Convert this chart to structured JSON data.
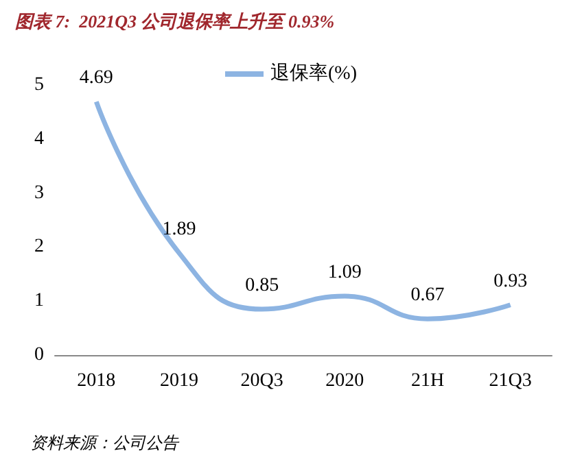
{
  "chart_data": {
    "type": "line",
    "title": "图表 7:  2021Q3 公司退保率上升至 0.93%",
    "categories": [
      "2018",
      "2019",
      "20Q3",
      "2020",
      "21H",
      "21Q3"
    ],
    "series": [
      {
        "name": "退保率(%)",
        "color": "#8db4e2",
        "values": [
          4.69,
          1.89,
          0.85,
          1.09,
          0.67,
          0.93
        ]
      }
    ],
    "ylim": [
      0,
      5
    ],
    "yticks": [
      0,
      1,
      2,
      3,
      4,
      5
    ],
    "grid": false,
    "legend": "top",
    "marker": "none",
    "line_style": "solid",
    "data_labels": true,
    "annotations": [
      "资料来源：公司公告"
    ]
  }
}
